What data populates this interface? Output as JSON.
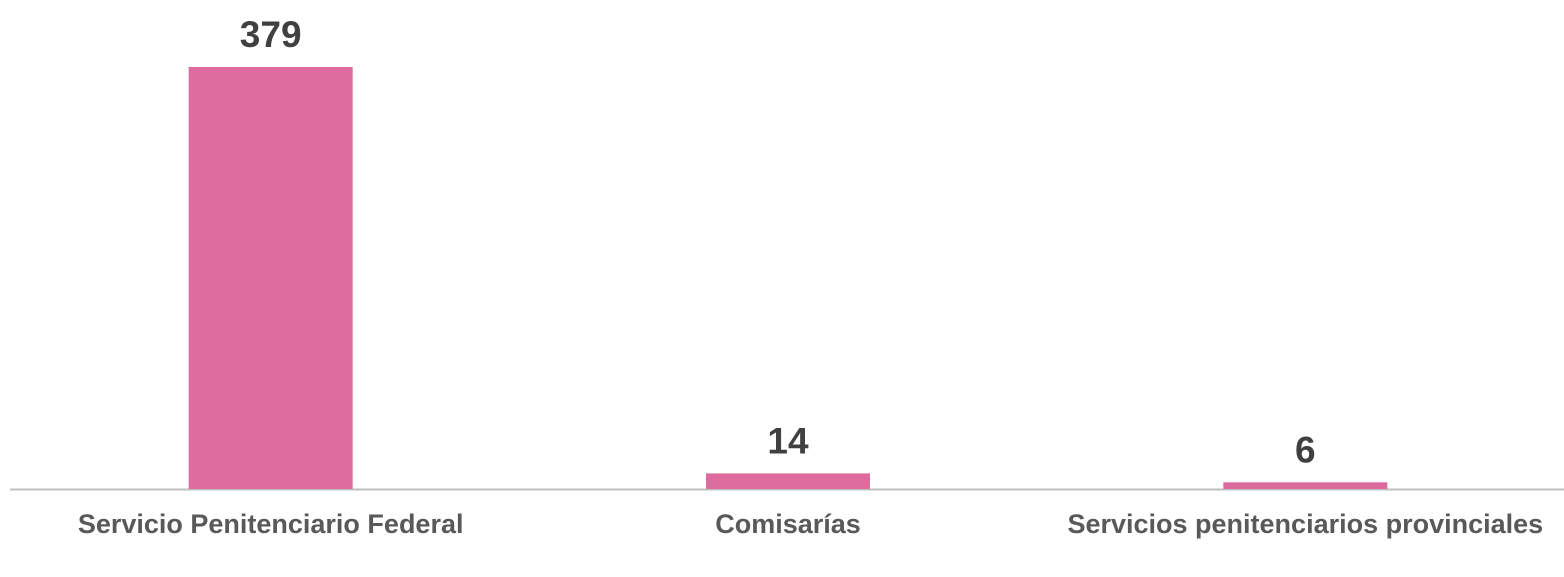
{
  "chart_data": {
    "type": "bar",
    "categories": [
      "Servicio Penitenciario Federal",
      "Comisarías",
      "Servicios penitenciarios provinciales"
    ],
    "values": [
      379,
      14,
      6
    ],
    "color": "#dd6b9d"
  }
}
